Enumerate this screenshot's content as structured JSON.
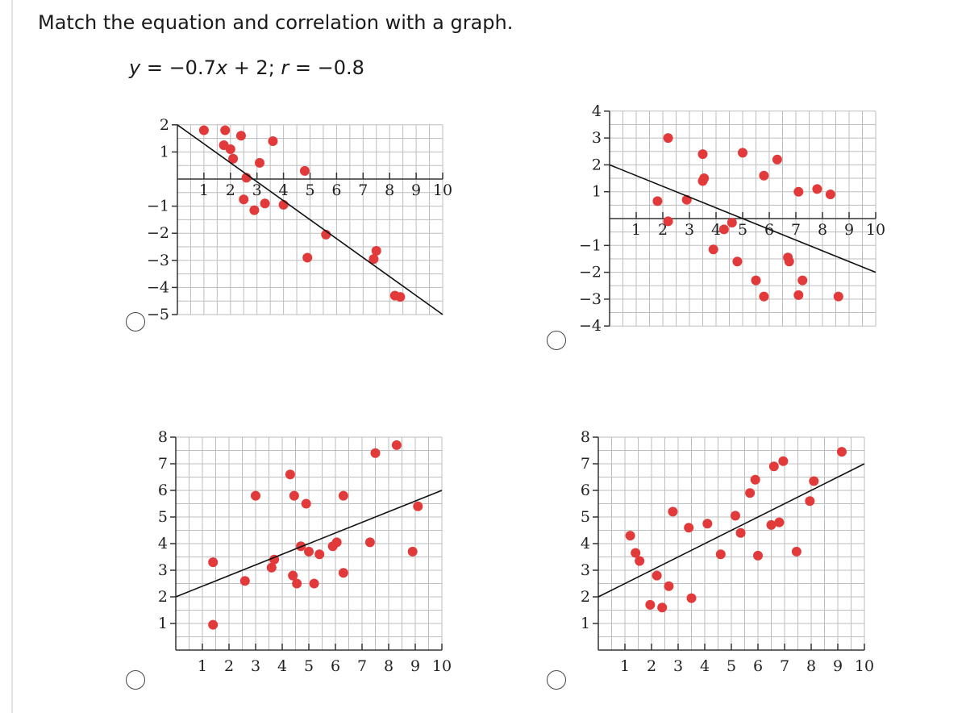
{
  "question": "Match the equation and correlation with a graph.",
  "equation": {
    "y": "y",
    "rhs": " = −0.7",
    "x": "x",
    "rest": " + 2; ",
    "r": "r",
    "rval": " = −0.8"
  },
  "chart_data": [
    {
      "type": "scatter",
      "id": "A",
      "xlim": [
        0,
        10
      ],
      "ylim": [
        -5,
        2
      ],
      "xticks": [
        1,
        2,
        3,
        4,
        5,
        6,
        7,
        8,
        9,
        10
      ],
      "xtick_labels": [
        "1",
        "2",
        "3",
        "4",
        "5",
        "6",
        "7",
        "8",
        "9",
        "10"
      ],
      "yticks": [
        2,
        1,
        -1,
        -2,
        -3,
        -4,
        -5
      ],
      "ytick_labels": [
        "2",
        "1",
        "−1",
        "−2",
        "−3",
        "−4",
        "−5"
      ],
      "xaxis_at": 0,
      "grid": true,
      "line": {
        "x": [
          0,
          10
        ],
        "y": [
          2,
          -5
        ]
      },
      "points": [
        [
          1,
          1.8
        ],
        [
          1.8,
          1.8
        ],
        [
          2.4,
          1.6
        ],
        [
          1.75,
          1.25
        ],
        [
          2,
          1.1
        ],
        [
          2.1,
          0.75
        ],
        [
          3.1,
          0.6
        ],
        [
          3.6,
          1.4
        ],
        [
          2.6,
          0.05
        ],
        [
          4.8,
          0.3
        ],
        [
          2.5,
          -0.75
        ],
        [
          2.9,
          -1.15
        ],
        [
          3.3,
          -0.9
        ],
        [
          4.0,
          -0.95
        ],
        [
          5.6,
          -2.05
        ],
        [
          4.9,
          -2.9
        ],
        [
          7.5,
          -2.65
        ],
        [
          7.4,
          -2.95
        ],
        [
          8.2,
          -4.3
        ],
        [
          8.4,
          -4.35
        ]
      ]
    },
    {
      "type": "scatter",
      "id": "B",
      "xlim": [
        0,
        10
      ],
      "ylim": [
        -4,
        4
      ],
      "xticks": [
        1,
        2,
        3,
        4,
        5,
        6,
        7,
        8,
        9,
        10
      ],
      "xtick_labels": [
        "1",
        "2",
        "3",
        "4",
        "5",
        "6",
        "7",
        "8",
        "9",
        "10"
      ],
      "yticks": [
        4,
        3,
        2,
        1,
        -1,
        -2,
        -3,
        -4
      ],
      "ytick_labels": [
        "4",
        "3",
        "2",
        "1",
        "−1",
        "−2",
        "−3",
        "−4"
      ],
      "xaxis_at": 0,
      "grid": true,
      "line": {
        "x": [
          0,
          10
        ],
        "y": [
          2,
          -2
        ]
      },
      "points": [
        [
          2.2,
          3
        ],
        [
          3.5,
          2.4
        ],
        [
          3.55,
          1.5
        ],
        [
          3.5,
          1.4
        ],
        [
          5.0,
          2.45
        ],
        [
          6.3,
          2.2
        ],
        [
          5.8,
          1.6
        ],
        [
          7.1,
          1.0
        ],
        [
          7.8,
          1.1
        ],
        [
          8.3,
          0.9
        ],
        [
          1.8,
          0.65
        ],
        [
          2.9,
          0.7
        ],
        [
          2.2,
          -0.1
        ],
        [
          4.6,
          -0.15
        ],
        [
          4.3,
          -0.4
        ],
        [
          3.9,
          -1.15
        ],
        [
          4.8,
          -1.6
        ],
        [
          6.7,
          -1.45
        ],
        [
          6.75,
          -1.6
        ],
        [
          5.5,
          -2.3
        ],
        [
          5.8,
          -2.9
        ],
        [
          7.25,
          -2.3
        ],
        [
          7.1,
          -2.85
        ],
        [
          8.6,
          -2.9
        ]
      ]
    },
    {
      "type": "scatter",
      "id": "C",
      "xlim": [
        0,
        10
      ],
      "ylim": [
        0,
        8
      ],
      "xticks": [
        1,
        2,
        3,
        4,
        5,
        6,
        7,
        8,
        9,
        10
      ],
      "xtick_labels": [
        "1",
        "2",
        "3",
        "4",
        "5",
        "6",
        "7",
        "8",
        "9",
        "10"
      ],
      "yticks": [
        8,
        7,
        6,
        5,
        4,
        3,
        2,
        1
      ],
      "ytick_labels": [
        "8",
        "7",
        "6",
        "5",
        "4",
        "3",
        "2",
        "1"
      ],
      "xaxis_at": 0,
      "grid": true,
      "line": {
        "x": [
          0,
          10
        ],
        "y": [
          2,
          6
        ]
      },
      "points": [
        [
          1.4,
          3.3
        ],
        [
          1.4,
          0.95
        ],
        [
          2.6,
          2.6
        ],
        [
          3.0,
          5.8
        ],
        [
          3.6,
          3.1
        ],
        [
          3.7,
          3.4
        ],
        [
          4.3,
          6.6
        ],
        [
          4.45,
          5.8
        ],
        [
          4.9,
          5.5
        ],
        [
          4.4,
          2.8
        ],
        [
          4.55,
          2.5
        ],
        [
          4.7,
          3.9
        ],
        [
          5.0,
          3.7
        ],
        [
          5.2,
          2.5
        ],
        [
          5.4,
          3.6
        ],
        [
          5.9,
          3.9
        ],
        [
          6.05,
          4.05
        ],
        [
          6.3,
          5.8
        ],
        [
          6.3,
          2.9
        ],
        [
          7.3,
          4.05
        ],
        [
          7.5,
          7.4
        ],
        [
          8.3,
          7.7
        ],
        [
          8.9,
          3.7
        ],
        [
          9.1,
          5.4
        ]
      ]
    },
    {
      "type": "scatter",
      "id": "D",
      "xlim": [
        0,
        10
      ],
      "ylim": [
        0,
        8
      ],
      "xticks": [
        1,
        2,
        3,
        4,
        5,
        6,
        7,
        8,
        9,
        10
      ],
      "xtick_labels": [
        "1",
        "2",
        "3",
        "4",
        "5",
        "6",
        "7",
        "8",
        "9",
        "10"
      ],
      "yticks": [
        8,
        7,
        6,
        5,
        4,
        3,
        2,
        1
      ],
      "ytick_labels": [
        "8",
        "7",
        "6",
        "5",
        "4",
        "3",
        "2",
        "1"
      ],
      "xaxis_at": 0,
      "grid": true,
      "line": {
        "x": [
          0,
          10
        ],
        "y": [
          2,
          7
        ]
      },
      "points": [
        [
          1.2,
          4.3
        ],
        [
          1.4,
          3.65
        ],
        [
          1.55,
          3.35
        ],
        [
          1.95,
          1.7
        ],
        [
          2.2,
          2.8
        ],
        [
          2.4,
          1.6
        ],
        [
          2.65,
          2.4
        ],
        [
          2.8,
          5.2
        ],
        [
          3.4,
          4.6
        ],
        [
          3.5,
          1.95
        ],
        [
          4.1,
          4.75
        ],
        [
          4.6,
          3.6
        ],
        [
          5.15,
          5.05
        ],
        [
          5.35,
          4.4
        ],
        [
          5.7,
          5.9
        ],
        [
          5.9,
          6.4
        ],
        [
          6.0,
          3.55
        ],
        [
          6.5,
          4.7
        ],
        [
          6.6,
          6.9
        ],
        [
          6.8,
          4.8
        ],
        [
          6.95,
          7.1
        ],
        [
          7.45,
          3.7
        ],
        [
          7.95,
          5.6
        ],
        [
          8.1,
          6.35
        ],
        [
          9.15,
          7.45
        ]
      ]
    }
  ],
  "colors": {
    "point": "#e23a3a",
    "grid": "#bdbdbd",
    "axis": "#333333",
    "line": "#111111"
  }
}
